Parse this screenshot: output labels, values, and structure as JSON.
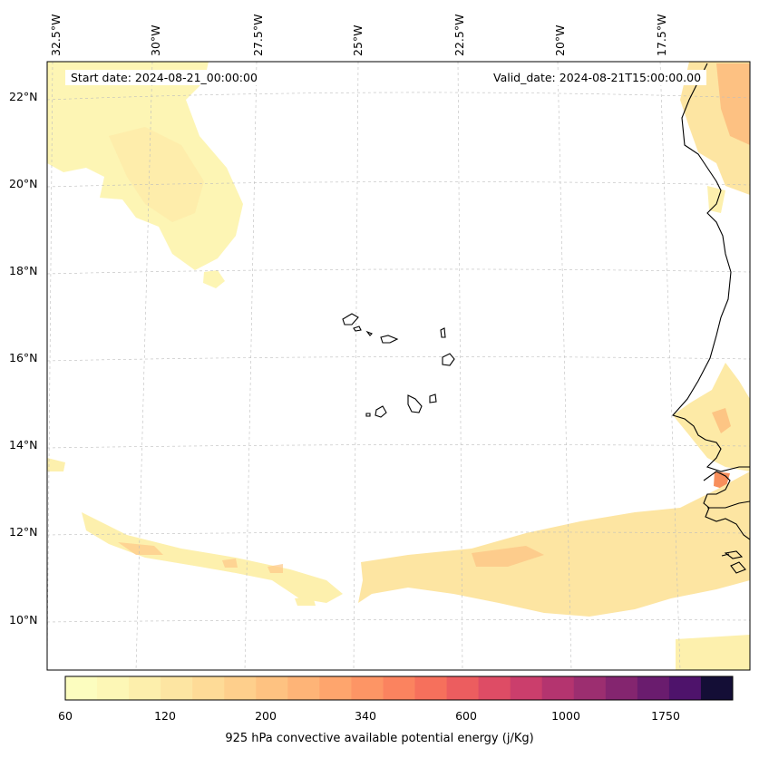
{
  "header": {
    "start_date": "Start date: 2024-08-21_00:00:00",
    "valid_date": "Valid_date: 2024-08-21T15:00:00.00"
  },
  "axes": {
    "lon_labels": [
      "32.5°W",
      "30°W",
      "27.5°W",
      "25°W",
      "22.5°W",
      "20°W",
      "17.5°W"
    ],
    "lat_labels": [
      "22°N",
      "20°N",
      "18°N",
      "16°N",
      "14°N",
      "12°N",
      "10°N"
    ]
  },
  "colorbar": {
    "label": "925 hPa convective available potential energy (j/Kg)",
    "tick_labels": [
      "60",
      "120",
      "200",
      "340",
      "600",
      "1000",
      "1750"
    ],
    "colors": [
      "#fcfdbf",
      "#fdf7b6",
      "#fdefac",
      "#fde5a2",
      "#fedb97",
      "#fecf8c",
      "#fec281",
      "#feb477",
      "#fea56d",
      "#fd9565",
      "#fb835f",
      "#f6705c",
      "#ec5d5f",
      "#de4c65",
      "#cb3e6c",
      "#b4346f",
      "#9c2e70",
      "#84256f",
      "#6a1c6e",
      "#4e136b",
      "#140e36"
    ]
  }
}
